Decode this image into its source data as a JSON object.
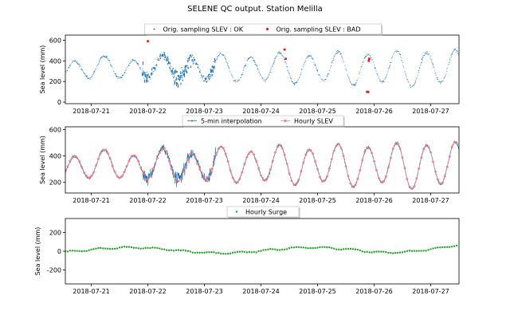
{
  "figure": {
    "title": "SELENE QC output. Station Melilla"
  },
  "chart_data": [
    {
      "type": "scatter",
      "ylabel": "Sea level (mm)",
      "x_range": [
        "2018-07-20 13:00",
        "2018-07-27 12:00"
      ],
      "ylim": [
        -15,
        650
      ],
      "yticks": [
        0,
        200,
        400,
        600
      ],
      "xticks": [
        "2018-07-21",
        "2018-07-22",
        "2018-07-23",
        "2018-07-24",
        "2018-07-25",
        "2018-07-26",
        "2018-07-27"
      ],
      "legend": {
        "placement": "top-center",
        "entries": [
          "Orig. sampling SLEV : OK",
          "Orig. sampling SLEV : BAD"
        ]
      },
      "series": [
        {
          "name": "Orig. sampling SLEV : OK",
          "color": "#1f77b4",
          "description_values": "Semidiurnal tidal signal, amplitude growing from ~100 mm to ~200 mm around a ~330 mm mean, noisy between 2018-07-21 and 2018-07-23"
        },
        {
          "name": "Orig. sampling SLEV : BAD",
          "color": "#d62728",
          "x": [
            "2018-07-22 00:00",
            "2018-07-24 10:00",
            "2018-07-24 10:30",
            "2018-07-25 21:00",
            "2018-07-25 21:30",
            "2018-07-25 21:45",
            "2018-07-25 21:55"
          ],
          "y": [
            590,
            510,
            420,
            100,
            98,
            400,
            420
          ]
        }
      ]
    },
    {
      "type": "line",
      "ylabel": "Sea level (mm)",
      "ylim": [
        120,
        620
      ],
      "yticks": [
        200,
        400,
        600
      ],
      "xticks": [
        "2018-07-21",
        "2018-07-22",
        "2018-07-23",
        "2018-07-24",
        "2018-07-25",
        "2018-07-26",
        "2018-07-27"
      ],
      "legend": {
        "placement": "top-center",
        "entries": [
          "5-min interpolation",
          "Hourly SLEV"
        ]
      },
      "series": [
        {
          "name": "5-min interpolation",
          "color": "#1f77b4"
        },
        {
          "name": "Hourly SLEV",
          "color": "#f08080"
        }
      ]
    },
    {
      "type": "scatter",
      "ylabel": "Sea level (mm)",
      "ylim": [
        -350,
        350
      ],
      "yticks": [
        -200,
        0,
        200
      ],
      "xticks": [
        "2018-07-21",
        "2018-07-22",
        "2018-07-23",
        "2018-07-24",
        "2018-07-25",
        "2018-07-26",
        "2018-07-27"
      ],
      "legend": {
        "placement": "top-center",
        "entries": [
          "Hourly Surge"
        ]
      },
      "series": [
        {
          "name": "Hourly Surge",
          "color": "#2ca02c",
          "description_values": "Hourly surge between about -60 and +70 mm, slightly positive near 2018-07-22, negative near 2018-07-24, rising to ~+60 mm by 2018-07-27"
        }
      ]
    }
  ]
}
